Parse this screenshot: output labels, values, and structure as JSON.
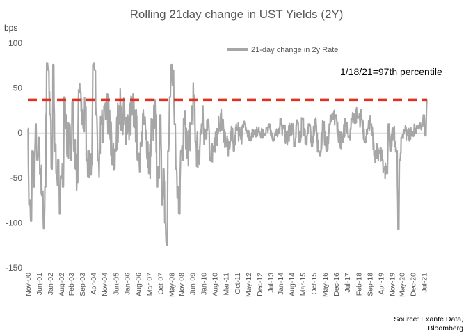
{
  "chart_data": {
    "type": "line",
    "title": "Rolling 21day change in UST Yields (2Y)",
    "ylabel": "bps",
    "ylim": [
      -150,
      100
    ],
    "yticks": [
      100,
      50,
      0,
      -50,
      -100,
      -150
    ],
    "x_tick_labels": [
      "Nov-00",
      "Jun-01",
      "Jan-02",
      "Aug-02",
      "Feb-03",
      "Sep-03",
      "Apr-04",
      "Nov-04",
      "Jun-05",
      "Jan-06",
      "Aug-06",
      "Mar-07",
      "Oct-07",
      "May-08",
      "Nov-08",
      "Jun-09",
      "Jan-10",
      "Aug-10",
      "Mar-11",
      "Oct-11",
      "May-12",
      "Dec-12",
      "Jul-13",
      "Jan-14",
      "Aug-14",
      "Mar-15",
      "Oct-15",
      "May-16",
      "Dec-16",
      "Jul-17",
      "Feb-18",
      "Sep-18",
      "Apr-19",
      "Nov-19",
      "May-20",
      "Dec-20",
      "Jul-21"
    ],
    "x_range": [
      "Nov-00",
      "Sep-21"
    ],
    "grid": false,
    "legend_position": "top-right",
    "series": [
      {
        "name": "21-day change in 2y Rate",
        "color": "#A6A6A6",
        "anchors": [
          [
            "2000-11",
            5
          ],
          [
            "2000-12",
            -80
          ],
          [
            "2001-01",
            -98
          ],
          [
            "2001-02",
            -20
          ],
          [
            "2001-03",
            -60
          ],
          [
            "2001-04",
            10
          ],
          [
            "2001-05",
            -30
          ],
          [
            "2001-06",
            -5
          ],
          [
            "2001-07",
            -40
          ],
          [
            "2001-08",
            -70
          ],
          [
            "2001-09",
            -106
          ],
          [
            "2001-10",
            -60
          ],
          [
            "2001-11",
            78
          ],
          [
            "2001-12",
            70
          ],
          [
            "2002-01",
            20
          ],
          [
            "2002-02",
            -40
          ],
          [
            "2002-03",
            76
          ],
          [
            "2002-04",
            -20
          ],
          [
            "2002-05",
            -45
          ],
          [
            "2002-06",
            -30
          ],
          [
            "2002-07",
            -90
          ],
          [
            "2002-08",
            -50
          ],
          [
            "2002-09",
            -60
          ],
          [
            "2002-10",
            40
          ],
          [
            "2002-11",
            20
          ],
          [
            "2002-12",
            -20
          ],
          [
            "2003-01",
            10
          ],
          [
            "2003-02",
            -30
          ],
          [
            "2003-03",
            35
          ],
          [
            "2003-04",
            -20
          ],
          [
            "2003-05",
            -40
          ],
          [
            "2003-06",
            -55
          ],
          [
            "2003-07",
            48
          ],
          [
            "2003-08",
            45
          ],
          [
            "2003-09",
            10
          ],
          [
            "2003-10",
            20
          ],
          [
            "2003-11",
            30
          ],
          [
            "2003-12",
            -30
          ],
          [
            "2004-01",
            -20
          ],
          [
            "2004-02",
            -30
          ],
          [
            "2004-03",
            -35
          ],
          [
            "2004-04",
            76
          ],
          [
            "2004-05",
            70
          ],
          [
            "2004-06",
            20
          ],
          [
            "2004-07",
            -30
          ],
          [
            "2004-08",
            -20
          ],
          [
            "2004-09",
            10
          ],
          [
            "2004-10",
            -10
          ],
          [
            "2004-11",
            30
          ],
          [
            "2004-12",
            15
          ],
          [
            "2005-02",
            25
          ],
          [
            "2005-04",
            -35
          ],
          [
            "2005-06",
            -20
          ],
          [
            "2005-08",
            30
          ],
          [
            "2005-10",
            20
          ],
          [
            "2005-12",
            10
          ],
          [
            "2006-02",
            15
          ],
          [
            "2006-04",
            20
          ],
          [
            "2006-06",
            25
          ],
          [
            "2006-08",
            -25
          ],
          [
            "2006-10",
            -15
          ],
          [
            "2006-12",
            10
          ],
          [
            "2007-02",
            -10
          ],
          [
            "2007-03",
            -45
          ],
          [
            "2007-05",
            15
          ],
          [
            "2007-07",
            20
          ],
          [
            "2007-08",
            -60
          ],
          [
            "2007-09",
            -50
          ],
          [
            "2007-10",
            20
          ],
          [
            "2007-11",
            -80
          ],
          [
            "2007-12",
            -40
          ],
          [
            "2008-01",
            -100
          ],
          [
            "2008-02",
            -125
          ],
          [
            "2008-03",
            -20
          ],
          [
            "2008-04",
            40
          ],
          [
            "2008-05",
            76
          ],
          [
            "2008-06",
            70
          ],
          [
            "2008-07",
            10
          ],
          [
            "2008-08",
            -40
          ],
          [
            "2008-09",
            -60
          ],
          [
            "2008-10",
            -90
          ],
          [
            "2008-11",
            -20
          ],
          [
            "2008-12",
            -30
          ],
          [
            "2009-01",
            10
          ],
          [
            "2009-03",
            -20
          ],
          [
            "2009-05",
            10
          ],
          [
            "2009-06",
            30
          ],
          [
            "2009-07",
            42
          ],
          [
            "2009-08",
            -10
          ],
          [
            "2009-10",
            -20
          ],
          [
            "2009-12",
            10
          ],
          [
            "2010-02",
            -5
          ],
          [
            "2010-04",
            15
          ],
          [
            "2010-05",
            -30
          ],
          [
            "2010-07",
            -15
          ],
          [
            "2010-09",
            -10
          ],
          [
            "2010-11",
            10
          ],
          [
            "2011-01",
            15
          ],
          [
            "2011-03",
            -15
          ],
          [
            "2011-05",
            -10
          ],
          [
            "2011-07",
            5
          ],
          [
            "2011-08",
            -20
          ],
          [
            "2011-10",
            3
          ],
          [
            "2011-12",
            -3
          ],
          [
            "2012-03",
            10
          ],
          [
            "2012-06",
            -5
          ],
          [
            "2012-09",
            2
          ],
          [
            "2012-12",
            1
          ],
          [
            "2013-03",
            -2
          ],
          [
            "2013-05",
            5
          ],
          [
            "2013-06",
            10
          ],
          [
            "2013-09",
            -8
          ],
          [
            "2013-12",
            5
          ],
          [
            "2014-03",
            8
          ],
          [
            "2014-05",
            -5
          ],
          [
            "2014-09",
            10
          ],
          [
            "2014-10",
            -15
          ],
          [
            "2014-12",
            12
          ],
          [
            "2015-01",
            -10
          ],
          [
            "2015-03",
            15
          ],
          [
            "2015-05",
            -12
          ],
          [
            "2015-07",
            10
          ],
          [
            "2015-09",
            -15
          ],
          [
            "2015-11",
            15
          ],
          [
            "2016-01",
            -20
          ],
          [
            "2016-02",
            -25
          ],
          [
            "2016-04",
            10
          ],
          [
            "2016-06",
            -20
          ],
          [
            "2016-08",
            10
          ],
          [
            "2016-10",
            15
          ],
          [
            "2016-12",
            20
          ],
          [
            "2017-02",
            -5
          ],
          [
            "2017-04",
            -10
          ],
          [
            "2017-06",
            10
          ],
          [
            "2017-08",
            -5
          ],
          [
            "2017-10",
            15
          ],
          [
            "2017-12",
            20
          ],
          [
            "2018-02",
            18
          ],
          [
            "2018-04",
            15
          ],
          [
            "2018-06",
            -10
          ],
          [
            "2018-08",
            5
          ],
          [
            "2018-10",
            10
          ],
          [
            "2018-12",
            -25
          ],
          [
            "2019-01",
            -20
          ],
          [
            "2019-03",
            -20
          ],
          [
            "2019-05",
            -30
          ],
          [
            "2019-06",
            -40
          ],
          [
            "2019-08",
            -45
          ],
          [
            "2019-09",
            10
          ],
          [
            "2019-10",
            -20
          ],
          [
            "2019-12",
            5
          ],
          [
            "2020-01",
            -10
          ],
          [
            "2020-02",
            -20
          ],
          [
            "2020-03",
            -107
          ],
          [
            "2020-04",
            -30
          ],
          [
            "2020-05",
            -5
          ],
          [
            "2020-07",
            2
          ],
          [
            "2020-09",
            -2
          ],
          [
            "2020-12",
            1
          ],
          [
            "2021-03",
            5
          ],
          [
            "2021-06",
            8
          ],
          [
            "2021-07",
            20
          ],
          [
            "2021-08",
            -3
          ],
          [
            "2021-09",
            37
          ]
        ]
      },
      {
        "name": "97th percentile",
        "color": "#E0301E",
        "style": "dashed",
        "value": 37
      }
    ],
    "annotation": "1/18/21=97th percentile",
    "source": [
      "Source: Exante Data,",
      "Bloomberg"
    ]
  }
}
